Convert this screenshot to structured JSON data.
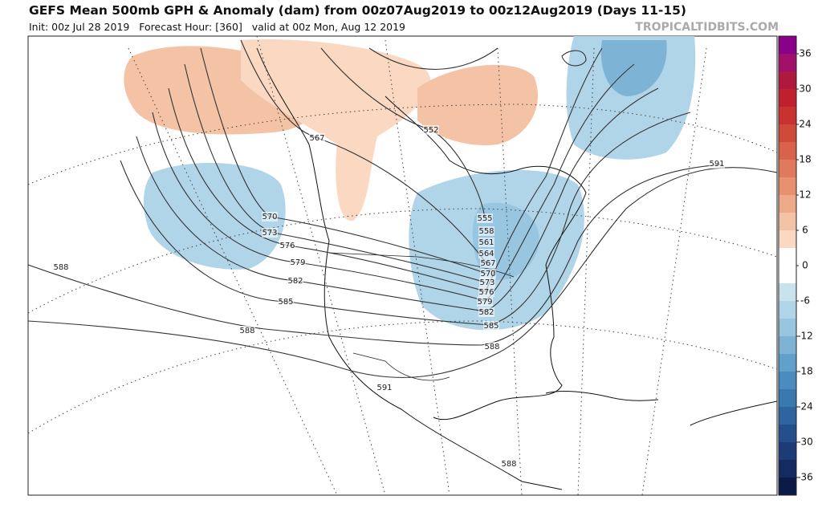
{
  "header": {
    "title": "GEFS Mean 500mb GPH & Anomaly (dam) from 00z07Aug2019 to 00z12Aug2019 (Days 11-15)",
    "subtitle": "Init: 00z Jul 28 2019   Forecast Hour: [360]   valid at 00z Mon, Aug 12 2019",
    "brand": "TROPICALTIDBITS.COM"
  },
  "contour_labels": [
    567,
    552,
    570,
    573,
    576,
    579,
    582,
    585,
    588,
    588,
    591,
    591,
    555,
    558,
    561,
    564,
    567,
    570,
    573,
    576,
    579,
    582,
    585,
    588,
    588
  ],
  "colorbar": {
    "ticks": [
      36,
      30,
      24,
      18,
      12,
      6,
      0,
      -6,
      -12,
      -18,
      -24,
      -30,
      -36
    ],
    "colors": [
      "#8b008b",
      "#a0106a",
      "#b0183e",
      "#c0202e",
      "#c8322f",
      "#d04a3a",
      "#d8624a",
      "#e07a5c",
      "#e8916f",
      "#eeaa88",
      "#f4c2a4",
      "#fad8c2",
      "#ffffff",
      "#ffffff",
      "#c8e2ee",
      "#b0d4e8",
      "#98c6e0",
      "#7db4d6",
      "#62a0cc",
      "#4a8cc0",
      "#3a78b0",
      "#2e64a0",
      "#254f8c",
      "#1c3c78",
      "#142a60",
      "#0c1a48"
    ]
  }
}
